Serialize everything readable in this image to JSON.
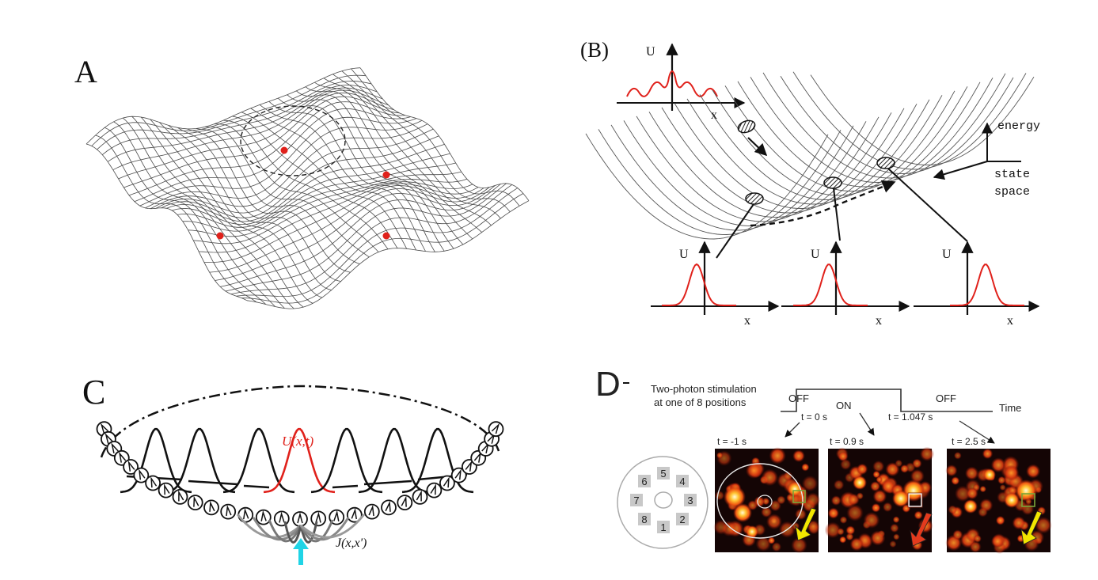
{
  "colors": {
    "line": "#222222",
    "red": "#e0211b",
    "cyan": "#20d4e6",
    "yellow": "#f2e600",
    "heat_bg": "#140505"
  },
  "panelA": {
    "label": "A"
  },
  "panelB": {
    "label": "(B)",
    "axis_u": "U",
    "axis_x": "x",
    "energy": "energy",
    "state": "state",
    "space": "space"
  },
  "panelC": {
    "label": "C",
    "u_label": "U(x,t)",
    "j_label": "J(x,x')"
  },
  "panelD": {
    "label": "D",
    "stim_line1": "Two-photon stimulation",
    "stim_line2": "at one of 8 positions",
    "off1": "OFF",
    "on": "ON",
    "off2": "OFF",
    "time": "Time",
    "t0": "t = 0 s",
    "t1047": "t = 1.047 s",
    "frames": [
      "t = -1 s",
      "t = 0.9 s",
      "t = 2.5 s"
    ],
    "positions": [
      "5",
      "4",
      "3",
      "2",
      "1",
      "8",
      "7",
      "6"
    ]
  }
}
